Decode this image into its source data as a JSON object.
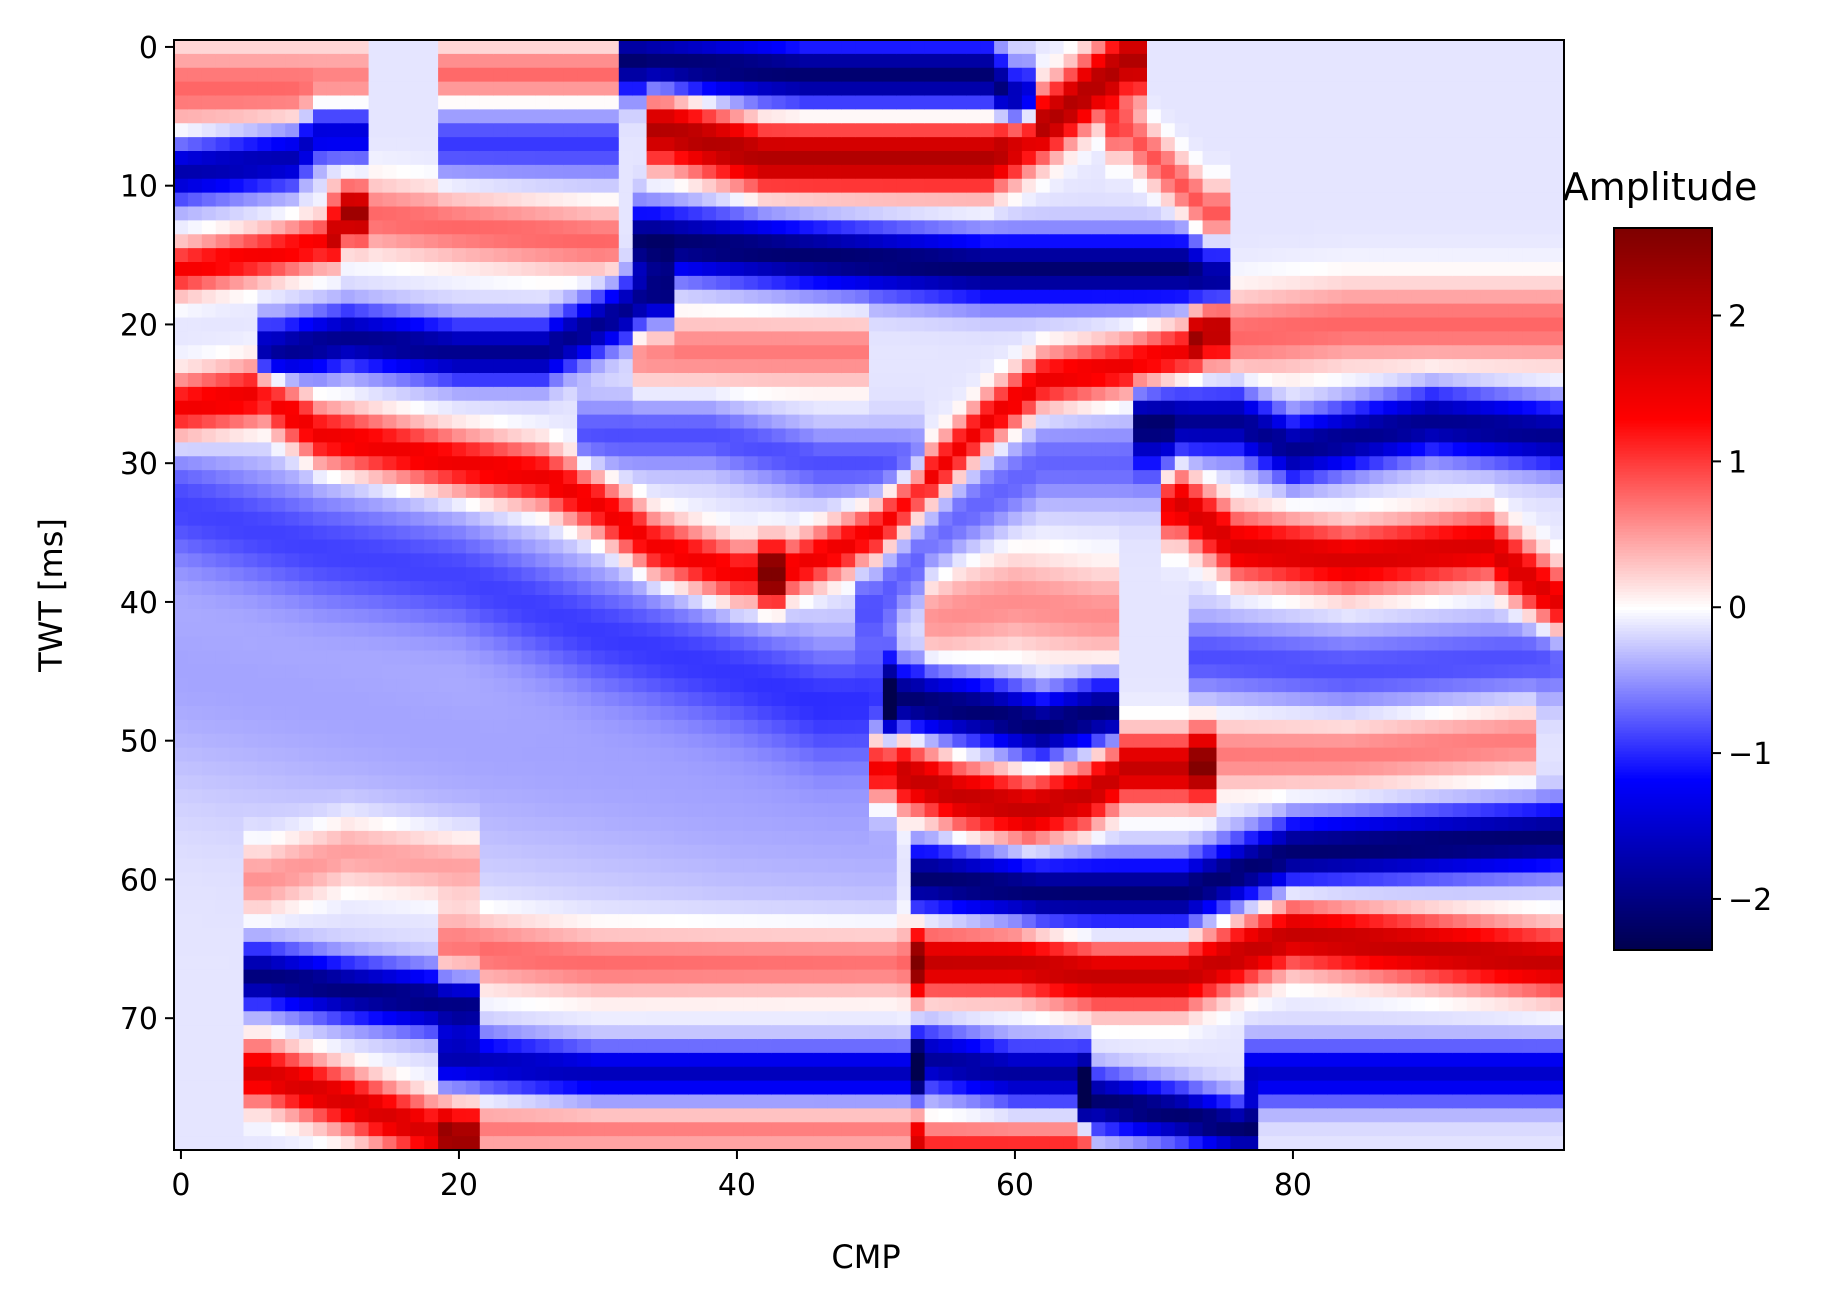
{
  "chart_data": {
    "type": "heatmap",
    "title": "",
    "xlabel": "CMP",
    "ylabel": "TWT [ms]",
    "x_range": [
      0,
      99
    ],
    "y_range": [
      0,
      79
    ],
    "y_axis_inverted": true,
    "x_ticks": [
      0,
      20,
      40,
      60,
      80
    ],
    "y_ticks": [
      0,
      10,
      20,
      30,
      40,
      50,
      60,
      70
    ],
    "colorbar": {
      "title": "Amplitude",
      "colormap": "seismic",
      "range": [
        -2.35,
        2.6
      ],
      "ticks": [
        -2,
        -1,
        0,
        1,
        2
      ],
      "tick_labels": [
        "−2",
        "−1",
        "0",
        "1",
        "2"
      ],
      "colors": [
        "#00004c",
        "#0000ff",
        "#ffffff",
        "#ff0000",
        "#7f0000"
      ]
    },
    "grid": false,
    "reflectors": [
      {
        "amp": -1.6,
        "width": 2.2,
        "path": [
          [
            0,
            9
          ],
          [
            8,
            8
          ],
          [
            10,
            6
          ],
          [
            12,
            6
          ]
        ]
      },
      {
        "amp": 1.5,
        "width": 1.8,
        "path": [
          [
            0,
            16
          ],
          [
            6,
            15
          ],
          [
            11,
            14
          ],
          [
            12,
            12
          ]
        ]
      },
      {
        "amp": 0.9,
        "width": 3.0,
        "path": [
          [
            0,
            3
          ],
          [
            12,
            3
          ]
        ]
      },
      {
        "amp": -1.8,
        "width": 2.2,
        "path": [
          [
            7,
            22
          ],
          [
            12,
            21
          ],
          [
            20,
            22
          ],
          [
            26,
            22
          ],
          [
            32,
            19
          ],
          [
            34,
            18
          ]
        ]
      },
      {
        "amp": 1.6,
        "width": 2.2,
        "path": [
          [
            0,
            26
          ],
          [
            6,
            25
          ],
          [
            10,
            28
          ],
          [
            20,
            30
          ],
          [
            26,
            31
          ],
          [
            30,
            33
          ],
          [
            34,
            36
          ],
          [
            40,
            38
          ],
          [
            42,
            38
          ]
        ]
      },
      {
        "amp": -0.7,
        "width": 4.5,
        "path": [
          [
            0,
            33
          ],
          [
            10,
            36
          ],
          [
            20,
            38
          ],
          [
            30,
            42
          ],
          [
            40,
            45
          ],
          [
            46,
            47
          ],
          [
            50,
            47
          ]
        ]
      },
      {
        "amp": -0.3,
        "width": 9.0,
        "path": [
          [
            0,
            45
          ],
          [
            20,
            50
          ],
          [
            40,
            54
          ],
          [
            50,
            55
          ]
        ]
      },
      {
        "amp": 0.9,
        "width": 2.5,
        "path": [
          [
            12,
            12
          ],
          [
            20,
            13
          ],
          [
            30,
            14
          ]
        ]
      },
      {
        "amp": 0.9,
        "width": 2.0,
        "path": [
          [
            20,
            2
          ],
          [
            30,
            2
          ]
        ]
      },
      {
        "amp": -0.8,
        "width": 2.5,
        "path": [
          [
            20,
            7
          ],
          [
            30,
            7
          ]
        ]
      },
      {
        "amp": -2.0,
        "width": 2.3,
        "path": [
          [
            33,
            1
          ],
          [
            45,
            2
          ],
          [
            58,
            2
          ],
          [
            60,
            4
          ]
        ]
      },
      {
        "amp": 2.2,
        "width": 2.5,
        "path": [
          [
            35,
            6
          ],
          [
            42,
            8
          ],
          [
            50,
            8
          ],
          [
            58,
            8
          ],
          [
            60,
            7
          ],
          [
            63,
            5
          ],
          [
            68,
            1
          ]
        ]
      },
      {
        "amp": -2.0,
        "width": 2.4,
        "path": [
          [
            34,
            14
          ],
          [
            45,
            15
          ],
          [
            58,
            16
          ],
          [
            65,
            16
          ],
          [
            72,
            16
          ],
          [
            74,
            17
          ]
        ]
      },
      {
        "amp": 0.8,
        "width": 2.5,
        "path": [
          [
            34,
            22
          ],
          [
            40,
            22
          ],
          [
            48,
            22
          ]
        ]
      },
      {
        "amp": -0.7,
        "width": 2.5,
        "path": [
          [
            30,
            28
          ],
          [
            38,
            28
          ],
          [
            46,
            30
          ],
          [
            52,
            30
          ]
        ]
      },
      {
        "amp": 1.6,
        "width": 2.0,
        "path": [
          [
            43,
            38
          ],
          [
            50,
            35
          ],
          [
            58,
            27
          ],
          [
            62,
            24
          ],
          [
            68,
            23
          ],
          [
            72,
            22
          ],
          [
            74,
            20
          ]
        ]
      },
      {
        "amp": -0.6,
        "width": 3.0,
        "path": [
          [
            50,
            40
          ],
          [
            56,
            34
          ],
          [
            62,
            30
          ],
          [
            70,
            30
          ]
        ]
      },
      {
        "amp": 0.7,
        "width": 3.5,
        "path": [
          [
            55,
            41
          ],
          [
            60,
            40
          ],
          [
            66,
            41
          ]
        ]
      },
      {
        "amp": -2.0,
        "width": 2.4,
        "path": [
          [
            52,
            47
          ],
          [
            58,
            48
          ],
          [
            62,
            49
          ],
          [
            66,
            48
          ]
        ]
      },
      {
        "amp": 2.0,
        "width": 2.4,
        "path": [
          [
            51,
            52
          ],
          [
            56,
            54
          ],
          [
            61,
            55
          ],
          [
            65,
            54
          ],
          [
            68,
            52
          ],
          [
            73,
            52
          ]
        ]
      },
      {
        "amp": -2.0,
        "width": 2.4,
        "path": [
          [
            54,
            60
          ],
          [
            62,
            61
          ],
          [
            66,
            61
          ],
          [
            72,
            61
          ],
          [
            80,
            58
          ],
          [
            99,
            57
          ]
        ]
      },
      {
        "amp": 2.0,
        "width": 2.4,
        "path": [
          [
            54,
            66
          ],
          [
            60,
            66
          ],
          [
            66,
            67
          ],
          [
            72,
            67
          ],
          [
            80,
            64
          ],
          [
            99,
            66
          ]
        ]
      },
      {
        "amp": -1.7,
        "width": 2.2,
        "path": [
          [
            54,
            73
          ],
          [
            60,
            74
          ],
          [
            64,
            74
          ]
        ]
      },
      {
        "amp": -2.0,
        "width": 2.0,
        "path": [
          [
            66,
            76
          ],
          [
            72,
            77
          ],
          [
            76,
            78
          ]
        ]
      },
      {
        "amp": 1.2,
        "width": 1.5,
        "path": [
          [
            54,
            79
          ],
          [
            64,
            79
          ]
        ]
      },
      {
        "amp": 1.0,
        "width": 2.0,
        "path": [
          [
            68,
            6
          ],
          [
            72,
            10
          ],
          [
            74,
            12
          ]
        ]
      },
      {
        "amp": -1.8,
        "width": 2.4,
        "path": [
          [
            70,
            27
          ],
          [
            76,
            27
          ],
          [
            80,
            29
          ],
          [
            90,
            27
          ],
          [
            99,
            28
          ]
        ]
      },
      {
        "amp": 1.8,
        "width": 2.4,
        "path": [
          [
            72,
            33
          ],
          [
            76,
            36
          ],
          [
            84,
            37
          ],
          [
            94,
            36
          ],
          [
            99,
            40
          ]
        ]
      },
      {
        "amp": 0.9,
        "width": 3.0,
        "path": [
          [
            74,
            21
          ],
          [
            84,
            20
          ],
          [
            99,
            20
          ]
        ]
      },
      {
        "amp": -0.7,
        "width": 3.0,
        "path": [
          [
            74,
            44
          ],
          [
            84,
            45
          ],
          [
            99,
            44
          ]
        ]
      },
      {
        "amp": 0.8,
        "width": 2.5,
        "path": [
          [
            74,
            51
          ],
          [
            84,
            51
          ],
          [
            96,
            50
          ]
        ]
      },
      {
        "amp": -1.4,
        "width": 2.2,
        "path": [
          [
            78,
            74
          ],
          [
            82,
            74
          ],
          [
            99,
            74
          ]
        ]
      },
      {
        "amp": 0.7,
        "width": 2.5,
        "path": [
          [
            6,
            60
          ],
          [
            12,
            58
          ],
          [
            20,
            59
          ]
        ]
      },
      {
        "amp": 0.9,
        "width": 2.5,
        "path": [
          [
            20,
            65
          ],
          [
            30,
            66
          ],
          [
            40,
            66
          ],
          [
            52,
            66
          ]
        ]
      },
      {
        "amp": -1.9,
        "width": 2.2,
        "path": [
          [
            6,
            67
          ],
          [
            12,
            68
          ],
          [
            20,
            69
          ]
        ]
      },
      {
        "amp": 1.8,
        "width": 2.2,
        "path": [
          [
            6,
            74
          ],
          [
            12,
            76
          ],
          [
            20,
            79
          ]
        ]
      },
      {
        "amp": -1.5,
        "width": 2.0,
        "path": [
          [
            20,
            73
          ],
          [
            30,
            74
          ],
          [
            40,
            74
          ],
          [
            52,
            74
          ]
        ]
      },
      {
        "amp": 0.8,
        "width": 1.8,
        "path": [
          [
            20,
            78
          ],
          [
            40,
            78
          ],
          [
            52,
            78
          ]
        ]
      }
    ],
    "background_amp": -0.12
  }
}
